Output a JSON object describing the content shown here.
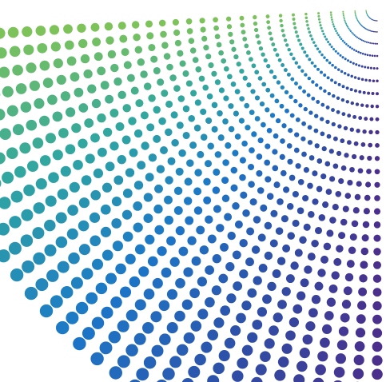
{
  "artwork": {
    "subject": "radial-halftone-dots",
    "palette": {
      "green": "#7dc35a",
      "teal": "#2fa6a2",
      "blue": "#1c77c8",
      "indigo": "#2f4ea6",
      "purple": "#4a2f8c"
    },
    "background": "#ffffff"
  }
}
